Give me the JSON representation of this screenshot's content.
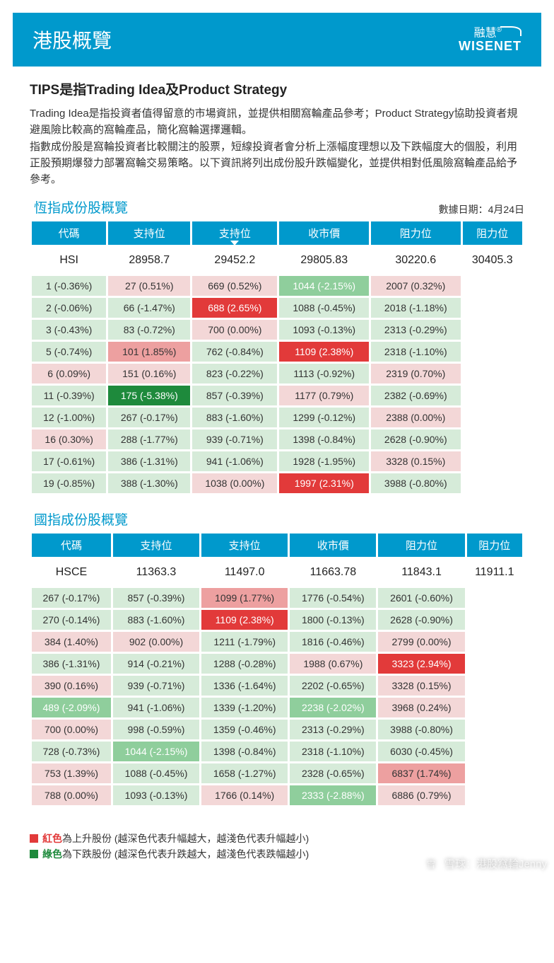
{
  "banner": {
    "title": "港股概覽",
    "logo_cn": "融慧",
    "logo_en": "WISENET"
  },
  "heading": "TIPS是指Trading Idea及Product Strategy",
  "intro": "Trading Idea是指投資者值得留意的市場資訊，並提供相關窩輪產品參考；Product Strategy協助投資者規避風險比較高的窩輪產品，簡化窩輪選擇邏輯。\n指數成份股是窩輪投資者比較關注的股票，短線投資者會分析上漲幅度理想以及下跌幅度大的個股，利用正股預期爆發力部署窩輪交易策略。以下資訊將列出成份股升跌幅變化，並提供相對低風險窩輪產品給予參考。",
  "date_label": "數據日期：4月24日",
  "columns": [
    "代碼",
    "支持位",
    "支持位",
    "收市價",
    "阻力位",
    "阻力位"
  ],
  "sort_col": 2,
  "palette": {
    "up_hi": "#e23a3a",
    "up_md": "#eda0a0",
    "up_lo": "#f3d7d7",
    "dn_hi": "#1e8a3c",
    "dn_md": "#8fce9c",
    "dn_lo": "#d6ebd9",
    "flat": "#f3d7d7"
  },
  "tables": [
    {
      "title": "恆指成份股概覽",
      "index": [
        "HSI",
        "28958.7",
        "29452.2",
        "29805.83",
        "30220.6",
        "30405.3"
      ],
      "rows": [
        [
          [
            "1 (-0.36%)",
            "dn_lo"
          ],
          [
            "27 (0.51%)",
            "up_lo"
          ],
          [
            "669 (0.52%)",
            "up_lo"
          ],
          [
            "1044 (-2.15%)",
            "dn_md"
          ],
          [
            "2007 (0.32%)",
            "up_lo"
          ]
        ],
        [
          [
            "2 (-0.06%)",
            "dn_lo"
          ],
          [
            "66 (-1.47%)",
            "dn_lo"
          ],
          [
            "688 (2.65%)",
            "up_hi"
          ],
          [
            "1088 (-0.45%)",
            "dn_lo"
          ],
          [
            "2018 (-1.18%)",
            "dn_lo"
          ]
        ],
        [
          [
            "3 (-0.43%)",
            "dn_lo"
          ],
          [
            "83 (-0.72%)",
            "dn_lo"
          ],
          [
            "700 (0.00%)",
            "flat"
          ],
          [
            "1093 (-0.13%)",
            "dn_lo"
          ],
          [
            "2313 (-0.29%)",
            "dn_lo"
          ]
        ],
        [
          [
            "5 (-0.74%)",
            "dn_lo"
          ],
          [
            "101 (1.85%)",
            "up_md"
          ],
          [
            "762 (-0.84%)",
            "dn_lo"
          ],
          [
            "1109 (2.38%)",
            "up_hi"
          ],
          [
            "2318 (-1.10%)",
            "dn_lo"
          ]
        ],
        [
          [
            "6 (0.09%)",
            "up_lo"
          ],
          [
            "151 (0.16%)",
            "up_lo"
          ],
          [
            "823 (-0.22%)",
            "dn_lo"
          ],
          [
            "1113 (-0.92%)",
            "dn_lo"
          ],
          [
            "2319 (0.70%)",
            "up_lo"
          ]
        ],
        [
          [
            "11 (-0.39%)",
            "dn_lo"
          ],
          [
            "175 (-5.38%)",
            "dn_hi"
          ],
          [
            "857 (-0.39%)",
            "dn_lo"
          ],
          [
            "1177 (0.79%)",
            "up_lo"
          ],
          [
            "2382 (-0.69%)",
            "dn_lo"
          ]
        ],
        [
          [
            "12 (-1.00%)",
            "dn_lo"
          ],
          [
            "267 (-0.17%)",
            "dn_lo"
          ],
          [
            "883 (-1.60%)",
            "dn_lo"
          ],
          [
            "1299 (-0.12%)",
            "dn_lo"
          ],
          [
            "2388 (0.00%)",
            "flat"
          ]
        ],
        [
          [
            "16 (0.30%)",
            "up_lo"
          ],
          [
            "288 (-1.77%)",
            "dn_lo"
          ],
          [
            "939 (-0.71%)",
            "dn_lo"
          ],
          [
            "1398 (-0.84%)",
            "dn_lo"
          ],
          [
            "2628 (-0.90%)",
            "dn_lo"
          ]
        ],
        [
          [
            "17 (-0.61%)",
            "dn_lo"
          ],
          [
            "386 (-1.31%)",
            "dn_lo"
          ],
          [
            "941 (-1.06%)",
            "dn_lo"
          ],
          [
            "1928 (-1.95%)",
            "dn_lo"
          ],
          [
            "3328 (0.15%)",
            "up_lo"
          ]
        ],
        [
          [
            "19 (-0.85%)",
            "dn_lo"
          ],
          [
            "388 (-1.30%)",
            "dn_lo"
          ],
          [
            "1038 (0.00%)",
            "flat"
          ],
          [
            "1997 (2.31%)",
            "up_hi"
          ],
          [
            "3988 (-0.80%)",
            "dn_lo"
          ]
        ]
      ]
    },
    {
      "title": "國指成份股概覽",
      "index": [
        "HSCE",
        "11363.3",
        "11497.0",
        "11663.78",
        "11843.1",
        "11911.1"
      ],
      "rows": [
        [
          [
            "267 (-0.17%)",
            "dn_lo"
          ],
          [
            "857 (-0.39%)",
            "dn_lo"
          ],
          [
            "1099 (1.77%)",
            "up_md"
          ],
          [
            "1776 (-0.54%)",
            "dn_lo"
          ],
          [
            "2601 (-0.60%)",
            "dn_lo"
          ]
        ],
        [
          [
            "270 (-0.14%)",
            "dn_lo"
          ],
          [
            "883 (-1.60%)",
            "dn_lo"
          ],
          [
            "1109 (2.38%)",
            "up_hi"
          ],
          [
            "1800 (-0.13%)",
            "dn_lo"
          ],
          [
            "2628 (-0.90%)",
            "dn_lo"
          ]
        ],
        [
          [
            "384 (1.40%)",
            "up_lo"
          ],
          [
            "902 (0.00%)",
            "flat"
          ],
          [
            "1211 (-1.79%)",
            "dn_lo"
          ],
          [
            "1816 (-0.46%)",
            "dn_lo"
          ],
          [
            "2799 (0.00%)",
            "flat"
          ]
        ],
        [
          [
            "386 (-1.31%)",
            "dn_lo"
          ],
          [
            "914 (-0.21%)",
            "dn_lo"
          ],
          [
            "1288 (-0.28%)",
            "dn_lo"
          ],
          [
            "1988 (0.67%)",
            "up_lo"
          ],
          [
            "3323 (2.94%)",
            "up_hi"
          ]
        ],
        [
          [
            "390 (0.16%)",
            "up_lo"
          ],
          [
            "939 (-0.71%)",
            "dn_lo"
          ],
          [
            "1336 (-1.64%)",
            "dn_lo"
          ],
          [
            "2202 (-0.65%)",
            "dn_lo"
          ],
          [
            "3328 (0.15%)",
            "up_lo"
          ]
        ],
        [
          [
            "489 (-2.09%)",
            "dn_md"
          ],
          [
            "941 (-1.06%)",
            "dn_lo"
          ],
          [
            "1339 (-1.20%)",
            "dn_lo"
          ],
          [
            "2238 (-2.02%)",
            "dn_md"
          ],
          [
            "3968 (0.24%)",
            "up_lo"
          ]
        ],
        [
          [
            "700 (0.00%)",
            "flat"
          ],
          [
            "998 (-0.59%)",
            "dn_lo"
          ],
          [
            "1359 (-0.46%)",
            "dn_lo"
          ],
          [
            "2313 (-0.29%)",
            "dn_lo"
          ],
          [
            "3988 (-0.80%)",
            "dn_lo"
          ]
        ],
        [
          [
            "728 (-0.73%)",
            "dn_lo"
          ],
          [
            "1044 (-2.15%)",
            "dn_md"
          ],
          [
            "1398 (-0.84%)",
            "dn_lo"
          ],
          [
            "2318 (-1.10%)",
            "dn_lo"
          ],
          [
            "6030 (-0.45%)",
            "dn_lo"
          ]
        ],
        [
          [
            "753 (1.39%)",
            "up_lo"
          ],
          [
            "1088 (-0.45%)",
            "dn_lo"
          ],
          [
            "1658 (-1.27%)",
            "dn_lo"
          ],
          [
            "2328 (-0.65%)",
            "dn_lo"
          ],
          [
            "6837 (1.74%)",
            "up_md"
          ]
        ],
        [
          [
            "788 (0.00%)",
            "flat"
          ],
          [
            "1093 (-0.13%)",
            "dn_lo"
          ],
          [
            "1766 (0.14%)",
            "up_lo"
          ],
          [
            "2333 (-2.88%)",
            "dn_md"
          ],
          [
            "6886 (0.79%)",
            "up_lo"
          ]
        ]
      ]
    }
  ],
  "legend": {
    "red_sq": "#e23a3a",
    "red_label": "紅色",
    "red_text": "為上升股份 (越深色代表升幅越大，越淺色代表升幅越小)",
    "green_sq": "#1e8a3c",
    "green_label": "綠色",
    "green_text": "為下跌股份 (越深色代表升跌越大，越淺色代表跌幅越小)"
  },
  "watermark": {
    "icon": "雪",
    "text": "雪球：港股窩輪Jenny"
  }
}
